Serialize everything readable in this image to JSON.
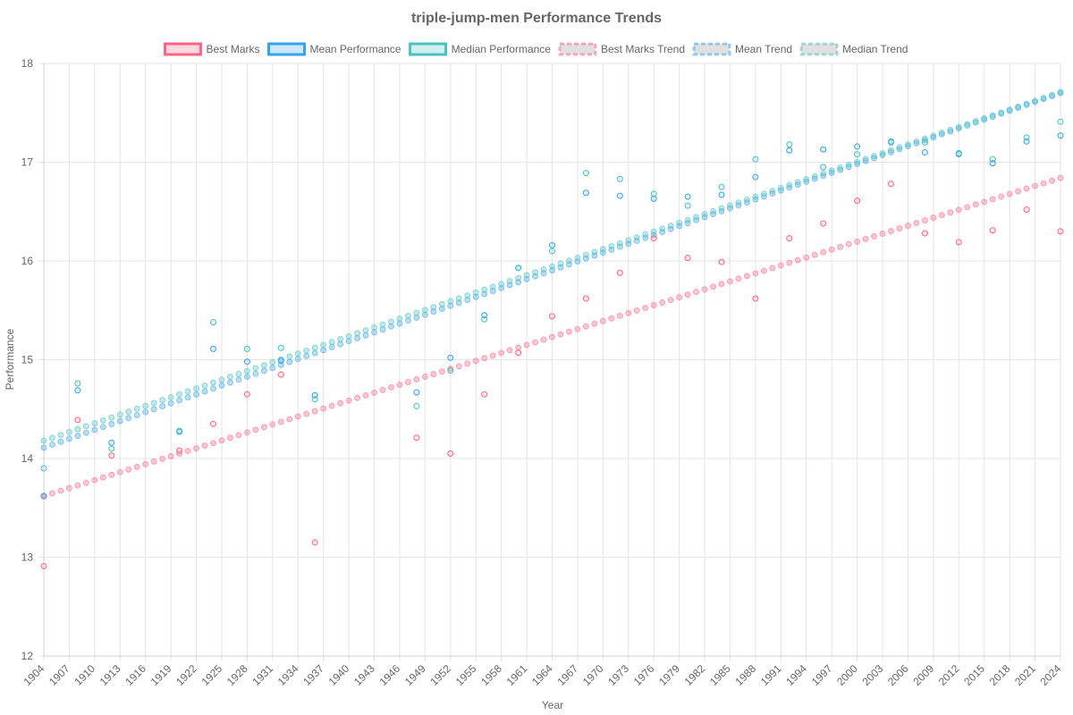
{
  "chart_data": {
    "type": "scatter",
    "title": "triple-jump-men Performance Trends",
    "xlabel": "Year",
    "ylabel": "Performance",
    "xlim": [
      1904,
      2024
    ],
    "ylim": [
      12,
      18
    ],
    "y_ticks": [
      12,
      13,
      14,
      15,
      16,
      17,
      18
    ],
    "x_ticks": [
      1904,
      1907,
      1910,
      1913,
      1916,
      1919,
      1922,
      1925,
      1928,
      1931,
      1934,
      1937,
      1940,
      1943,
      1946,
      1949,
      1952,
      1955,
      1958,
      1961,
      1964,
      1967,
      1970,
      1973,
      1976,
      1979,
      1982,
      1985,
      1988,
      1991,
      1994,
      1997,
      2000,
      2003,
      2006,
      2009,
      2012,
      2015,
      2018,
      2021,
      2024
    ],
    "grid": true,
    "legend_position": "top",
    "series": [
      {
        "name": "Best Marks",
        "kind": "points",
        "color": "#ff6384",
        "points": [
          [
            1904,
            12.91
          ],
          [
            1904,
            13.62
          ],
          [
            1908,
            14.39
          ],
          [
            1912,
            14.03
          ],
          [
            1920,
            14.08
          ],
          [
            1924,
            14.35
          ],
          [
            1928,
            14.65
          ],
          [
            1932,
            14.85
          ],
          [
            1936,
            13.15
          ],
          [
            1948,
            14.21
          ],
          [
            1952,
            14.05
          ],
          [
            1956,
            14.65
          ],
          [
            1960,
            15.07
          ],
          [
            1964,
            15.44
          ],
          [
            1968,
            15.62
          ],
          [
            1972,
            15.88
          ],
          [
            1976,
            16.23
          ],
          [
            1980,
            16.03
          ],
          [
            1984,
            15.99
          ],
          [
            1988,
            15.62
          ],
          [
            1992,
            16.23
          ],
          [
            1996,
            16.38
          ],
          [
            2000,
            16.61
          ],
          [
            2004,
            16.78
          ],
          [
            2008,
            16.28
          ],
          [
            2012,
            16.19
          ],
          [
            2016,
            16.31
          ],
          [
            2020,
            16.52
          ],
          [
            2024,
            16.3
          ]
        ]
      },
      {
        "name": "Mean Performance",
        "kind": "points",
        "color": "#36a2eb",
        "points": [
          [
            1904,
            13.62
          ],
          [
            1908,
            14.69
          ],
          [
            1912,
            14.16
          ],
          [
            1920,
            14.27
          ],
          [
            1924,
            15.11
          ],
          [
            1928,
            14.98
          ],
          [
            1932,
            14.99
          ],
          [
            1936,
            14.64
          ],
          [
            1948,
            14.67
          ],
          [
            1952,
            15.02
          ],
          [
            1956,
            15.45
          ],
          [
            1960,
            15.93
          ],
          [
            1964,
            16.16
          ],
          [
            1968,
            16.69
          ],
          [
            1972,
            16.66
          ],
          [
            1976,
            16.63
          ],
          [
            1980,
            16.65
          ],
          [
            1984,
            16.67
          ],
          [
            1988,
            16.85
          ],
          [
            1992,
            17.12
          ],
          [
            1996,
            17.13
          ],
          [
            2000,
            17.16
          ],
          [
            2004,
            17.21
          ],
          [
            2008,
            17.1
          ],
          [
            2012,
            17.09
          ],
          [
            2016,
            16.99
          ],
          [
            2020,
            17.21
          ],
          [
            2024,
            17.27
          ]
        ]
      },
      {
        "name": "Median Performance",
        "kind": "points",
        "color": "#4bc0c0",
        "points": [
          [
            1904,
            13.9
          ],
          [
            1908,
            14.76
          ],
          [
            1912,
            14.1
          ],
          [
            1920,
            14.28
          ],
          [
            1924,
            15.38
          ],
          [
            1928,
            15.11
          ],
          [
            1932,
            15.12
          ],
          [
            1936,
            14.6
          ],
          [
            1948,
            14.53
          ],
          [
            1952,
            14.89
          ],
          [
            1956,
            15.41
          ],
          [
            1960,
            15.93
          ],
          [
            1964,
            16.1
          ],
          [
            1968,
            16.89
          ],
          [
            1972,
            16.83
          ],
          [
            1976,
            16.68
          ],
          [
            1980,
            16.56
          ],
          [
            1984,
            16.75
          ],
          [
            1988,
            17.03
          ],
          [
            1992,
            17.18
          ],
          [
            1996,
            16.95
          ],
          [
            2000,
            17.08
          ],
          [
            2004,
            17.2
          ],
          [
            2008,
            17.2
          ],
          [
            2012,
            17.08
          ],
          [
            2016,
            17.03
          ],
          [
            2020,
            17.25
          ],
          [
            2024,
            17.41
          ]
        ]
      },
      {
        "name": "Best Marks Trend",
        "kind": "trend",
        "color": "#ff6384",
        "start": [
          1904,
          13.62
        ],
        "end": [
          2024,
          16.84
        ]
      },
      {
        "name": "Mean Trend",
        "kind": "trend",
        "color": "#36a2eb",
        "start": [
          1904,
          14.11
        ],
        "end": [
          2024,
          17.7
        ]
      },
      {
        "name": "Median Trend",
        "kind": "trend",
        "color": "#4bc0c0",
        "start": [
          1904,
          14.18
        ],
        "end": [
          2024,
          17.71
        ]
      }
    ]
  }
}
